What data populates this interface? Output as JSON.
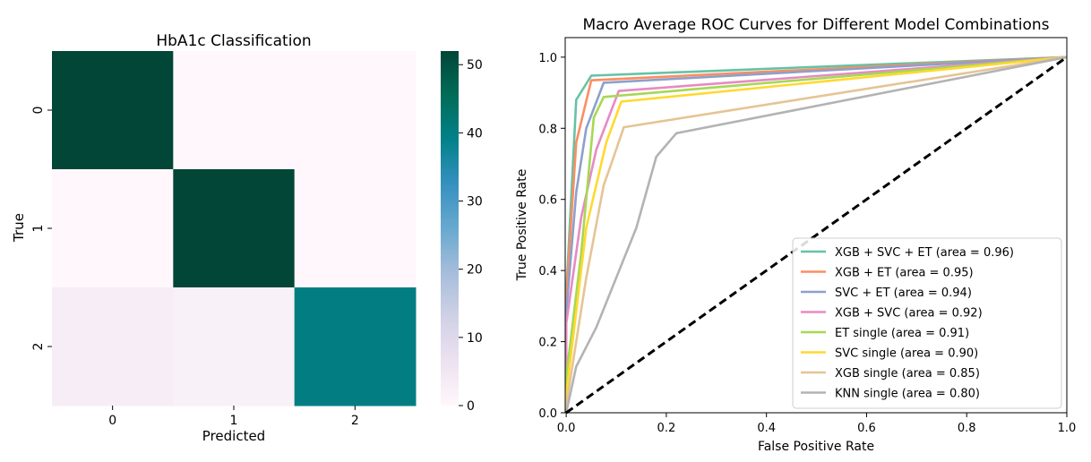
{
  "chart_data": [
    {
      "type": "heatmap",
      "title": "HbA1c Classification",
      "xlabel": "Predicted",
      "ylabel": "True",
      "x_categories": [
        "0",
        "1",
        "2"
      ],
      "y_categories": [
        "0",
        "1",
        "2"
      ],
      "values": [
        [
          52,
          0,
          0
        ],
        [
          0,
          52,
          0
        ],
        [
          3,
          2,
          40
        ]
      ],
      "colorbar": {
        "min": 0,
        "max": 52,
        "ticks": [
          0,
          10,
          20,
          30,
          40,
          50
        ],
        "colormap": "PuBuGn"
      }
    },
    {
      "type": "line",
      "title": "Macro Average ROC Curves for Different Model Combinations",
      "xlabel": "False Positive Rate",
      "ylabel": "True Positive Rate",
      "xlim": [
        0,
        1.0
      ],
      "ylim": [
        0,
        1.0
      ],
      "xticks": [
        "0.0",
        "0.2",
        "0.4",
        "0.6",
        "0.8",
        "1.0"
      ],
      "yticks": [
        "0.0",
        "0.2",
        "0.4",
        "0.6",
        "0.8",
        "1.0"
      ],
      "legend_position": "lower right",
      "series": [
        {
          "name": "XGB + SVC + ET (area = 0.96)",
          "color": "#66c2a5",
          "x": [
            0,
            0,
            0.02,
            0.05,
            1.0
          ],
          "y": [
            0,
            0.33,
            0.88,
            0.948,
            1.0
          ]
        },
        {
          "name": "XGB + ET (area = 0.95)",
          "color": "#fc8d62",
          "x": [
            0,
            0,
            0.02,
            0.05,
            1.0
          ],
          "y": [
            0,
            0.32,
            0.76,
            0.935,
            1.0
          ]
        },
        {
          "name": "SVC + ET (area = 0.94)",
          "color": "#8da0cb",
          "x": [
            0,
            0,
            0.02,
            0.04,
            0.075,
            1.0
          ],
          "y": [
            0,
            0.28,
            0.62,
            0.8,
            0.928,
            1.0
          ]
        },
        {
          "name": "XGB + SVC (area = 0.92)",
          "color": "#e78ac3",
          "x": [
            0,
            0,
            0.03,
            0.06,
            0.105,
            1.0
          ],
          "y": [
            0,
            0.25,
            0.55,
            0.74,
            0.905,
            1.0
          ]
        },
        {
          "name": "ET single (area = 0.91)",
          "color": "#a6d854",
          "x": [
            0,
            0,
            0.03,
            0.055,
            0.075,
            1.0
          ],
          "y": [
            0,
            0.1,
            0.45,
            0.83,
            0.888,
            1.0
          ]
        },
        {
          "name": "SVC single (area = 0.90)",
          "color": "#ffd92f",
          "x": [
            0,
            0,
            0.04,
            0.08,
            0.11,
            1.0
          ],
          "y": [
            0,
            0.05,
            0.52,
            0.76,
            0.875,
            1.0
          ]
        },
        {
          "name": "XGB single (area = 0.85)",
          "color": "#e5c494",
          "x": [
            0,
            0,
            0.04,
            0.075,
            0.095,
            0.115,
            1.0
          ],
          "y": [
            0,
            0.02,
            0.38,
            0.64,
            0.72,
            0.803,
            1.0
          ]
        },
        {
          "name": "KNN single (area = 0.80)",
          "color": "#b3b3b3",
          "x": [
            0,
            0.02,
            0.06,
            0.14,
            0.18,
            0.22,
            1.0
          ],
          "y": [
            0,
            0.13,
            0.24,
            0.52,
            0.72,
            0.786,
            1.0
          ]
        },
        {
          "name": "",
          "color": "#000000",
          "dashed": true,
          "x": [
            0,
            1.0
          ],
          "y": [
            0,
            1.0
          ]
        }
      ]
    }
  ]
}
